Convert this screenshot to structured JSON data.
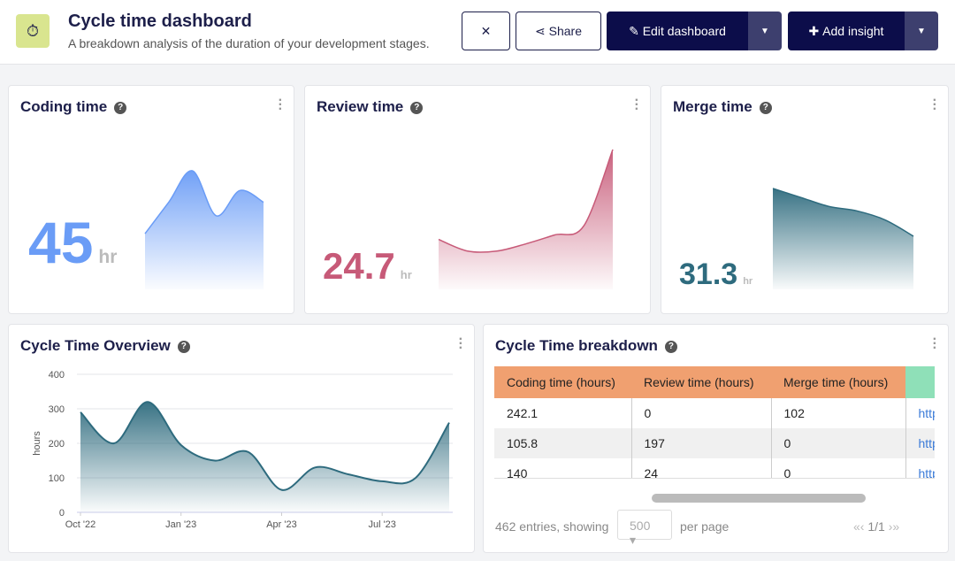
{
  "header": {
    "title": "Cycle time dashboard",
    "subtitle": "A breakdown analysis of the duration of your development stages.",
    "buttons": [
      "Share",
      "Edit dashboard",
      "Add insight"
    ]
  },
  "cards": [
    {
      "title": "Coding time",
      "value": 45,
      "unit": "hr",
      "color": "#6a9cf6",
      "sparkline": [
        60,
        95,
        130,
        80,
        108,
        95
      ]
    },
    {
      "title": "Review time",
      "value": 24.7,
      "unit": "hr",
      "color": "#c75a78",
      "sparkline": [
        26,
        13,
        13,
        21,
        31,
        41,
        126
      ]
    },
    {
      "title": "Merge time",
      "value": 31.3,
      "unit": "hr",
      "color": "#2e6b7e",
      "sparkline": [
        110,
        100,
        90,
        85,
        75,
        57
      ]
    }
  ],
  "chart_data": {
    "type": "line",
    "title": "Cycle Time Overview",
    "y_label": "hours",
    "color": "#2e6b7e",
    "grid": true,
    "categories": [
      "Oct '22",
      null,
      null,
      "Jan '23",
      null,
      null,
      "Apr '23",
      null,
      null,
      "Jul '23",
      null,
      null
    ],
    "values": [
      290,
      200,
      320,
      195,
      150,
      175,
      65,
      130,
      110,
      90,
      100,
      260
    ],
    "ylim": [
      0,
      400
    ],
    "yticks": [
      0,
      100,
      200,
      300,
      400
    ]
  },
  "table": {
    "title": "Cycle Time breakdown",
    "headers": [
      "Coding time (hours)",
      "Review time (hours)",
      "Merge time (hours)"
    ],
    "rows": [
      [
        "242.1",
        "0",
        "102",
        "http"
      ],
      [
        "105.8",
        "197",
        "0",
        "http"
      ],
      [
        "140",
        "24",
        "0",
        "http"
      ]
    ],
    "footer": {
      "entries": "462 entries, showing",
      "per_page_value": "500",
      "per_page": "per page",
      "pages": "1/1"
    }
  }
}
